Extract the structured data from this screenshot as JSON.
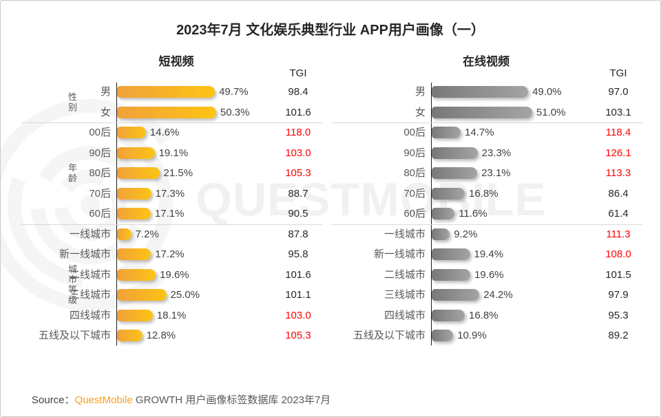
{
  "title": "2023年7月 文化娱乐典型行业 APP用户画像（一）",
  "watermark": {
    "text": "QUESTMOBILE"
  },
  "source": {
    "prefix": "Source：",
    "brand": "QuestMobile",
    "rest": " GROWTH 用户画像标签数据库 2023年7月"
  },
  "colors": {
    "bar_orange_start": "#F0A13A",
    "bar_orange_end": "#FDC414",
    "bar_gray_start": "#787878",
    "bar_gray_end": "#A4A4A4",
    "tgi_highlight": "#FF0000",
    "text_dark": "#262626",
    "text_gray": "#595959"
  },
  "groups": [
    {
      "label": "性别",
      "start": 0,
      "end": 1
    },
    {
      "label": "年龄",
      "start": 2,
      "end": 6
    },
    {
      "label": "城市等级",
      "start": 7,
      "end": 12
    }
  ],
  "chart_data": [
    {
      "type": "bar",
      "title": "短视频",
      "tgi_header": "TGI",
      "bar_style": "bar-orange",
      "categories": [
        "男",
        "女",
        "00后",
        "90后",
        "80后",
        "70后",
        "60后",
        "一线城市",
        "新一线城市",
        "二线城市",
        "三线城市",
        "四线城市",
        "五线及以下城市"
      ],
      "rows": [
        {
          "label": "男",
          "pct": 49.7,
          "pct_label": "49.7%",
          "tgi": "98.4",
          "tgi_red": false
        },
        {
          "label": "女",
          "pct": 50.3,
          "pct_label": "50.3%",
          "tgi": "101.6",
          "tgi_red": false
        },
        {
          "label": "00后",
          "pct": 14.6,
          "pct_label": "14.6%",
          "tgi": "118.0",
          "tgi_red": true
        },
        {
          "label": "90后",
          "pct": 19.1,
          "pct_label": "19.1%",
          "tgi": "103.0",
          "tgi_red": true
        },
        {
          "label": "80后",
          "pct": 21.5,
          "pct_label": "21.5%",
          "tgi": "105.3",
          "tgi_red": true
        },
        {
          "label": "70后",
          "pct": 17.3,
          "pct_label": "17.3%",
          "tgi": "88.7",
          "tgi_red": false
        },
        {
          "label": "60后",
          "pct": 17.1,
          "pct_label": "17.1%",
          "tgi": "90.5",
          "tgi_red": false
        },
        {
          "label": "一线城市",
          "pct": 7.2,
          "pct_label": "7.2%",
          "tgi": "87.8",
          "tgi_red": false
        },
        {
          "label": "新一线城市",
          "pct": 17.2,
          "pct_label": "17.2%",
          "tgi": "95.8",
          "tgi_red": false
        },
        {
          "label": "二线城市",
          "pct": 19.6,
          "pct_label": "19.6%",
          "tgi": "101.6",
          "tgi_red": false
        },
        {
          "label": "三线城市",
          "pct": 25.0,
          "pct_label": "25.0%",
          "tgi": "101.1",
          "tgi_red": false
        },
        {
          "label": "四线城市",
          "pct": 18.1,
          "pct_label": "18.1%",
          "tgi": "103.0",
          "tgi_red": true
        },
        {
          "label": "五线及以下城市",
          "pct": 12.8,
          "pct_label": "12.8%",
          "tgi": "105.3",
          "tgi_red": true
        }
      ]
    },
    {
      "type": "bar",
      "title": "在线视频",
      "tgi_header": "TGI",
      "bar_style": "bar-gray",
      "categories": [
        "男",
        "女",
        "00后",
        "90后",
        "80后",
        "70后",
        "60后",
        "一线城市",
        "新一线城市",
        "二线城市",
        "三线城市",
        "四线城市",
        "五线及以下城市"
      ],
      "rows": [
        {
          "label": "男",
          "pct": 49.0,
          "pct_label": "49.0%",
          "tgi": "97.0",
          "tgi_red": false
        },
        {
          "label": "女",
          "pct": 51.0,
          "pct_label": "51.0%",
          "tgi": "103.1",
          "tgi_red": false
        },
        {
          "label": "00后",
          "pct": 14.7,
          "pct_label": "14.7%",
          "tgi": "118.4",
          "tgi_red": true
        },
        {
          "label": "90后",
          "pct": 23.3,
          "pct_label": "23.3%",
          "tgi": "126.1",
          "tgi_red": true
        },
        {
          "label": "80后",
          "pct": 23.1,
          "pct_label": "23.1%",
          "tgi": "113.3",
          "tgi_red": true
        },
        {
          "label": "70后",
          "pct": 16.8,
          "pct_label": "16.8%",
          "tgi": "86.4",
          "tgi_red": false
        },
        {
          "label": "60后",
          "pct": 11.6,
          "pct_label": "11.6%",
          "tgi": "61.4",
          "tgi_red": false
        },
        {
          "label": "一线城市",
          "pct": 9.2,
          "pct_label": "9.2%",
          "tgi": "111.3",
          "tgi_red": true
        },
        {
          "label": "新一线城市",
          "pct": 19.4,
          "pct_label": "19.4%",
          "tgi": "108.0",
          "tgi_red": true
        },
        {
          "label": "二线城市",
          "pct": 19.6,
          "pct_label": "19.6%",
          "tgi": "101.5",
          "tgi_red": false
        },
        {
          "label": "三线城市",
          "pct": 24.2,
          "pct_label": "24.2%",
          "tgi": "97.9",
          "tgi_red": false
        },
        {
          "label": "四线城市",
          "pct": 16.8,
          "pct_label": "16.8%",
          "tgi": "95.3",
          "tgi_red": false
        },
        {
          "label": "五线及以下城市",
          "pct": 10.9,
          "pct_label": "10.9%",
          "tgi": "89.2",
          "tgi_red": false
        }
      ]
    }
  ]
}
